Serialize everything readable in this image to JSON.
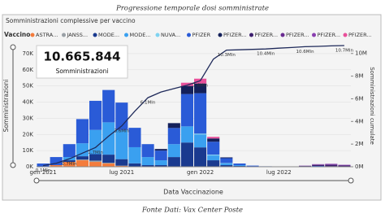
{
  "page_title": "Progressione temporale dosi somministrate",
  "caption": "Fonte Dati: Vax Center Poste",
  "kpi": {
    "value": "10.665.844",
    "label": "Somministrazioni"
  },
  "chart_data": {
    "type": "bar",
    "title": "Somministrazioni complessive per vaccino",
    "legend_title": "Vaccino",
    "x_label": "Data Vaccinazione",
    "y_label": "Somministrazioni",
    "y2_label": "Somministrazioni cumulate",
    "categories": [
      "gen 2021",
      null,
      null,
      null,
      null,
      null,
      "lug 2021",
      null,
      null,
      null,
      null,
      null,
      "gen 2022",
      null,
      null,
      null,
      null,
      null,
      "lug 2022",
      null,
      null,
      null,
      null,
      null
    ],
    "ylim": [
      0,
      75000
    ],
    "yticks": [
      {
        "value": 0,
        "label": "0K"
      },
      {
        "value": 10000,
        "label": "10K"
      },
      {
        "value": 20000,
        "label": "20K"
      },
      {
        "value": 30000,
        "label": "30K"
      },
      {
        "value": 40000,
        "label": "40K"
      },
      {
        "value": 50000,
        "label": "50K"
      },
      {
        "value": 60000,
        "label": "60K"
      },
      {
        "value": 70000,
        "label": "70K"
      }
    ],
    "y2lim": [
      0,
      10700000
    ],
    "y2ticks": [
      {
        "value": 0,
        "label": "0M"
      },
      {
        "value": 2000000,
        "label": "2M"
      },
      {
        "value": 4000000,
        "label": "4M"
      },
      {
        "value": 6000000,
        "label": "6M"
      },
      {
        "value": 8000000,
        "label": "8M"
      },
      {
        "value": 10000000,
        "label": "10M"
      }
    ],
    "series": [
      {
        "name": "ASTRA...",
        "color": "#f47c3c",
        "values": [
          0,
          1000,
          3000,
          4000,
          3000,
          2000,
          500,
          0,
          0,
          0,
          0,
          0,
          0,
          0,
          0,
          0,
          0,
          0,
          0,
          0,
          0,
          0,
          0,
          0
        ]
      },
      {
        "name": "JANSS...",
        "color": "#9aa0a6",
        "values": [
          0,
          0,
          0,
          500,
          800,
          500,
          200,
          100,
          0,
          0,
          0,
          0,
          0,
          0,
          0,
          0,
          0,
          0,
          0,
          0,
          0,
          0,
          0,
          0
        ]
      },
      {
        "name": "MODE...",
        "color": "#1a3a8f",
        "values": [
          0,
          0,
          1000,
          2000,
          4000,
          5000,
          4000,
          2000,
          1000,
          1000,
          6000,
          15000,
          12000,
          4000,
          1000,
          500,
          0,
          0,
          0,
          0,
          0,
          0,
          0,
          0
        ]
      },
      {
        "name": "MODE...",
        "color": "#3aa0f0",
        "values": [
          0,
          0,
          2000,
          8000,
          15000,
          20000,
          18000,
          10000,
          5000,
          3000,
          8000,
          10000,
          8000,
          3000,
          1000,
          500,
          200,
          0,
          0,
          0,
          0,
          0,
          0,
          0
        ]
      },
      {
        "name": "NUVA...",
        "color": "#7fd3f0",
        "values": [
          0,
          0,
          0,
          0,
          0,
          0,
          0,
          0,
          0,
          0,
          0,
          0,
          500,
          500,
          300,
          0,
          0,
          0,
          0,
          0,
          0,
          0,
          0,
          0
        ]
      },
      {
        "name": "PFIZER",
        "color": "#2a5bd7",
        "values": [
          2000,
          5000,
          8000,
          15000,
          18000,
          20000,
          17000,
          12000,
          8000,
          6000,
          10000,
          20000,
          25000,
          8000,
          3000,
          1000,
          500,
          300,
          200,
          200,
          300,
          500,
          300,
          200
        ]
      },
      {
        "name": "PFIZER...",
        "color": "#14205a",
        "values": [
          0,
          0,
          0,
          0,
          0,
          0,
          0,
          0,
          0,
          1000,
          3000,
          5000,
          6000,
          2000,
          500,
          0,
          0,
          0,
          0,
          0,
          0,
          0,
          0,
          0
        ]
      },
      {
        "name": "PFIZER...",
        "color": "#3d1f6e",
        "values": [
          0,
          0,
          0,
          0,
          0,
          0,
          0,
          0,
          0,
          0,
          0,
          0,
          0,
          0,
          0,
          0,
          0,
          0,
          0,
          0,
          200,
          600,
          800,
          500
        ]
      },
      {
        "name": "PFIZER...",
        "color": "#6a2c91",
        "values": [
          0,
          0,
          0,
          0,
          0,
          0,
          0,
          0,
          0,
          0,
          0,
          0,
          0,
          0,
          0,
          0,
          0,
          0,
          0,
          0,
          100,
          300,
          400,
          300
        ]
      },
      {
        "name": "PFIZER...",
        "color": "#8a3fb0",
        "values": [
          0,
          0,
          0,
          0,
          0,
          0,
          0,
          0,
          0,
          0,
          0,
          0,
          0,
          0,
          0,
          0,
          0,
          0,
          0,
          0,
          100,
          200,
          300,
          200
        ]
      },
      {
        "name": "PFIZER...",
        "color": "#e84f9a",
        "values": [
          0,
          0,
          0,
          0,
          0,
          0,
          0,
          0,
          0,
          0,
          0,
          2000,
          3000,
          1000,
          0,
          0,
          0,
          0,
          0,
          0,
          0,
          0,
          0,
          0
        ]
      },
      {
        "name": "Somministrazioni cumulate",
        "color": "#1f2a5a",
        "axis": "y2",
        "type": "line",
        "values": [
          100000,
          300000,
          700000,
          1200000,
          1700000,
          2700000,
          3600000,
          4900000,
          6100000,
          6600000,
          6900000,
          7200000,
          7600000,
          9500000,
          10300000,
          10330000,
          10360000,
          10400000,
          10470000,
          10530000,
          10600000,
          10630000,
          10670000,
          10700000
        ],
        "value_labels": [
          "0.1Mln",
          null,
          "0.7Mln",
          null,
          "1.7Mln",
          null,
          "3.6Mln",
          null,
          "6.1Mln",
          null,
          null,
          null,
          "7.6Mln",
          null,
          "10.3Mln",
          null,
          null,
          "10.4Mln",
          null,
          null,
          "10.6Mln",
          null,
          null,
          "10.7Mln"
        ]
      }
    ]
  }
}
